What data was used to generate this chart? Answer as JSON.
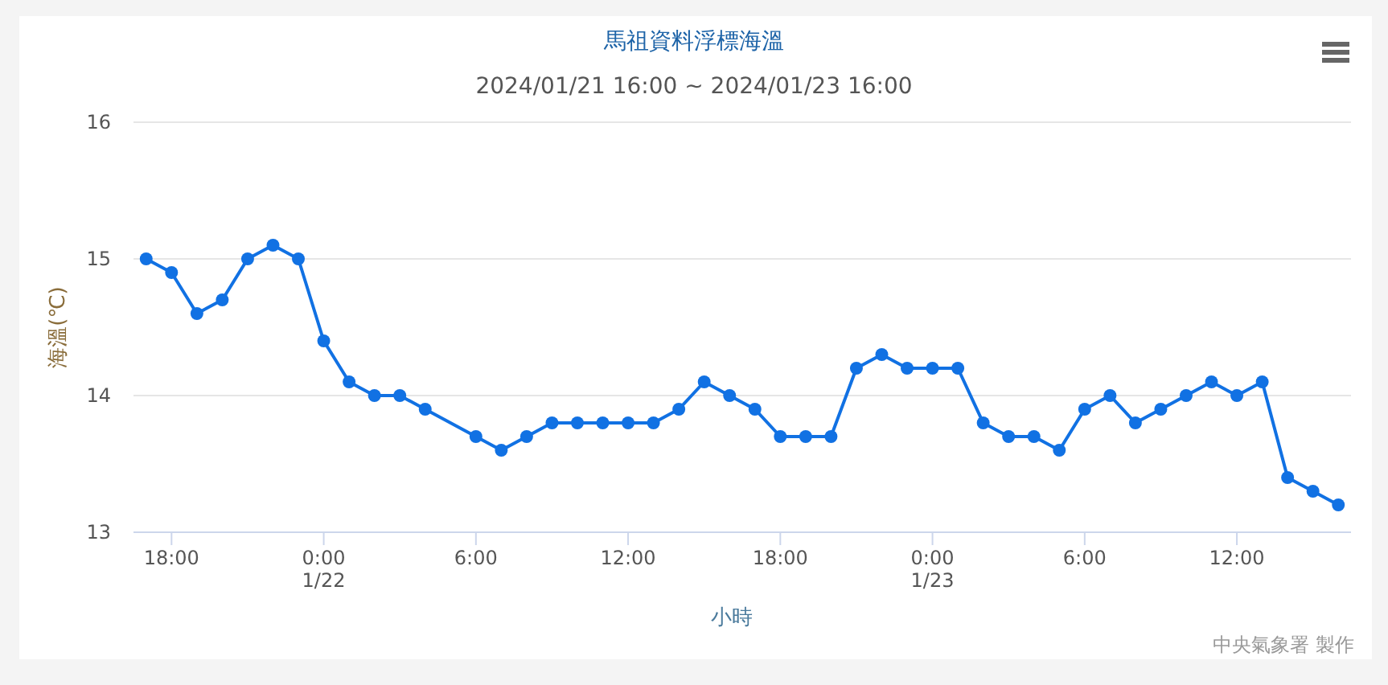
{
  "chart_data": {
    "type": "line",
    "title": "馬祖資料浮標海溫",
    "subtitle": "2024/01/21 16:00 ~ 2024/01/23 16:00",
    "xlabel": "小時",
    "ylabel": "海溫(℃)",
    "annotations": [
      "中央氣象署 製作"
    ],
    "x": [
      "2024-01-21T17:00",
      "2024-01-21T18:00",
      "2024-01-21T19:00",
      "2024-01-21T20:00",
      "2024-01-21T21:00",
      "2024-01-21T22:00",
      "2024-01-21T23:00",
      "2024-01-22T00:00",
      "2024-01-22T01:00",
      "2024-01-22T02:00",
      "2024-01-22T03:00",
      "2024-01-22T04:00",
      "2024-01-22T06:00",
      "2024-01-22T07:00",
      "2024-01-22T08:00",
      "2024-01-22T09:00",
      "2024-01-22T10:00",
      "2024-01-22T11:00",
      "2024-01-22T12:00",
      "2024-01-22T13:00",
      "2024-01-22T14:00",
      "2024-01-22T15:00",
      "2024-01-22T16:00",
      "2024-01-22T17:00",
      "2024-01-22T18:00",
      "2024-01-22T19:00",
      "2024-01-22T20:00",
      "2024-01-22T21:00",
      "2024-01-22T22:00",
      "2024-01-22T23:00",
      "2024-01-23T00:00",
      "2024-01-23T01:00",
      "2024-01-23T02:00",
      "2024-01-23T03:00",
      "2024-01-23T04:00",
      "2024-01-23T05:00",
      "2024-01-23T06:00",
      "2024-01-23T07:00",
      "2024-01-23T08:00",
      "2024-01-23T09:00",
      "2024-01-23T10:00",
      "2024-01-23T11:00",
      "2024-01-23T12:00",
      "2024-01-23T13:00",
      "2024-01-23T14:00",
      "2024-01-23T15:00",
      "2024-01-23T16:00"
    ],
    "series": [
      {
        "color": "#1171e3",
        "values": [
          15.0,
          14.9,
          14.6,
          14.7,
          15.0,
          15.1,
          15.0,
          14.4,
          14.1,
          14.0,
          14.0,
          13.9,
          13.7,
          13.6,
          13.7,
          13.8,
          13.8,
          13.8,
          13.8,
          13.8,
          13.9,
          14.1,
          14.0,
          13.9,
          13.7,
          13.7,
          13.7,
          14.2,
          14.3,
          14.2,
          14.2,
          14.2,
          13.8,
          13.7,
          13.7,
          13.6,
          13.9,
          14.0,
          13.8,
          13.9,
          14.0,
          14.1,
          14.0,
          14.1,
          13.4,
          13.3,
          13.2
        ]
      }
    ],
    "xlim": [
      "2024-01-21T16:30",
      "2024-01-23T16:30"
    ],
    "xticks": [
      {
        "value": "2024-01-21T18:00",
        "label": "18:00"
      },
      {
        "value": "2024-01-22T00:00",
        "label": "0:00\n1/22"
      },
      {
        "value": "2024-01-22T06:00",
        "label": "6:00"
      },
      {
        "value": "2024-01-22T12:00",
        "label": "12:00"
      },
      {
        "value": "2024-01-22T18:00",
        "label": "18:00"
      },
      {
        "value": "2024-01-23T00:00",
        "label": "0:00\n1/23"
      },
      {
        "value": "2024-01-23T06:00",
        "label": "6:00"
      },
      {
        "value": "2024-01-23T12:00",
        "label": "12:00"
      }
    ],
    "ylim": [
      13,
      16
    ],
    "yticks": [
      13,
      14,
      15,
      16
    ],
    "grid": "y",
    "marker": "circle",
    "line_style": "solid"
  }
}
